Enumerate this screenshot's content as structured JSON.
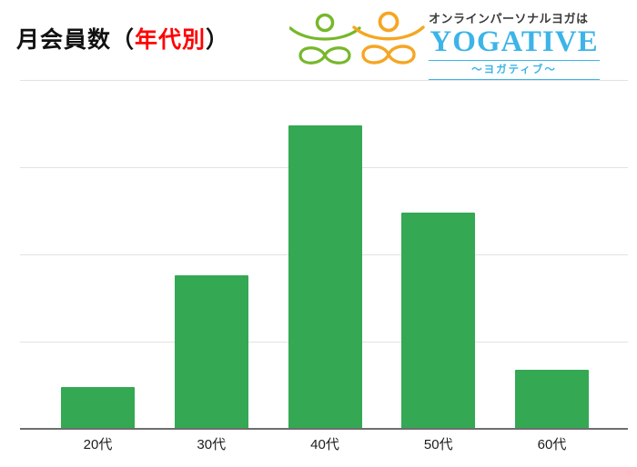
{
  "header": {
    "title_prefix": "月会員数",
    "title_paren_open": "（",
    "title_highlight": "年代別",
    "title_paren_close": "）",
    "highlight_color": "#ff0000"
  },
  "logo": {
    "tagline": "オンラインパーソナルヨガは",
    "brand": "YOGATIVE",
    "subtitle": "～ヨガティブ～",
    "brand_color": "#3cb4e8",
    "figure_left_color": "#76b82a",
    "figure_right_color": "#f5a623"
  },
  "chart_data": {
    "type": "bar",
    "title": "月会員数（年代別）",
    "categories": [
      "20代",
      "30代",
      "40代",
      "50代",
      "60代"
    ],
    "values": [
      12,
      44,
      87,
      62,
      17
    ],
    "value_units": "relative units (y-axis unlabeled; top gridline = 100)",
    "ylim": [
      0,
      100
    ],
    "gridline_step": 25,
    "grid": true,
    "legend_position": "none",
    "xlabel": "",
    "ylabel": "",
    "bar_color": "#34a853",
    "gridline_color": "#e2e2e2",
    "axis_color": "#6e6e6e",
    "tick_label_color": "#1c1c1c"
  }
}
